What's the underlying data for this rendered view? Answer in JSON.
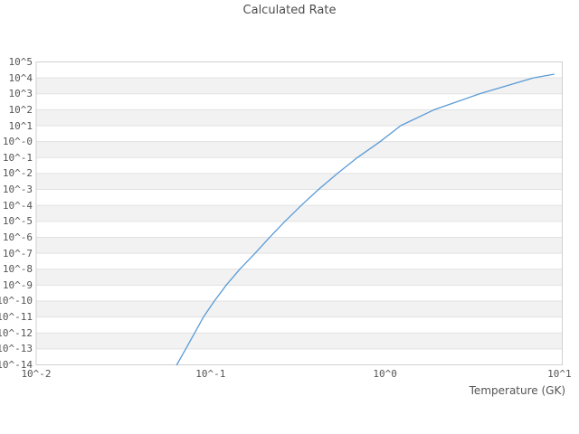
{
  "title": "Calculated Rate",
  "colors": {
    "line": "#5a9bd7",
    "band": "#f2f2f2",
    "gridline": "#e1e1e1",
    "border": "#d0d0d0",
    "text": "#555555",
    "title_text": "#4d4d4d",
    "background": "#ffffff"
  },
  "chart_data": {
    "type": "line",
    "title": "Calculated Rate",
    "xlabel": "Temperature (GK)",
    "ylabel": "",
    "x_scale": "log",
    "y_scale": "log",
    "xlim": [
      0.01,
      10
    ],
    "ylim": [
      1e-14,
      100000.0
    ],
    "grid": "horizontal gridlines with alternating shaded decade bands",
    "legend": "none",
    "x_ticks": [
      {
        "label": "10^-2",
        "value": 0.01
      },
      {
        "label": "10^-1",
        "value": 0.1
      },
      {
        "label": "10^0",
        "value": 1
      },
      {
        "label": "10^1",
        "value": 10
      }
    ],
    "y_ticks": [
      {
        "label": "10^5",
        "value": 100000.0
      },
      {
        "label": "10^4",
        "value": 10000.0
      },
      {
        "label": "10^3",
        "value": 1000.0
      },
      {
        "label": "10^2",
        "value": 100.0
      },
      {
        "label": "10^1",
        "value": 10.0
      },
      {
        "label": "10^-0",
        "value": 1
      },
      {
        "label": "10^-1",
        "value": 0.1
      },
      {
        "label": "10^-2",
        "value": 0.01
      },
      {
        "label": "10^-3",
        "value": 0.001
      },
      {
        "label": "10^-4",
        "value": 0.0001
      },
      {
        "label": "10^-5",
        "value": 1e-05
      },
      {
        "label": "10^-6",
        "value": 1e-06
      },
      {
        "label": "10^-7",
        "value": 1e-07
      },
      {
        "label": "10^-8",
        "value": 1e-08
      },
      {
        "label": "10^-9",
        "value": 1e-09
      },
      {
        "label": "10^-10",
        "value": 1e-10
      },
      {
        "label": "10^-11",
        "value": 1e-11
      },
      {
        "label": "10^-12",
        "value": 1e-12
      },
      {
        "label": "10^-13",
        "value": 1e-13
      },
      {
        "label": "10^-14",
        "value": 1e-14
      }
    ],
    "series": [
      {
        "name": "calculated-rate",
        "color": "#5a9bd7",
        "points": [
          [
            0.064,
            1e-14
          ],
          [
            0.072,
            1e-13
          ],
          [
            0.081,
            1e-12
          ],
          [
            0.091,
            1e-11
          ],
          [
            0.105,
            1e-10
          ],
          [
            0.123,
            1e-09
          ],
          [
            0.147,
            1e-08
          ],
          [
            0.18,
            1e-07
          ],
          [
            0.218,
            1e-06
          ],
          [
            0.267,
            1e-05
          ],
          [
            0.331,
            0.0001
          ],
          [
            0.415,
            0.001
          ],
          [
            0.533,
            0.01
          ],
          [
            0.694,
            0.1
          ],
          [
            0.936,
            1.0
          ],
          [
            1.23,
            10
          ],
          [
            1.91,
            100
          ],
          [
            3.48,
            1000
          ],
          [
            7.1,
            10000
          ],
          [
            9.3,
            17000
          ]
        ]
      }
    ]
  }
}
